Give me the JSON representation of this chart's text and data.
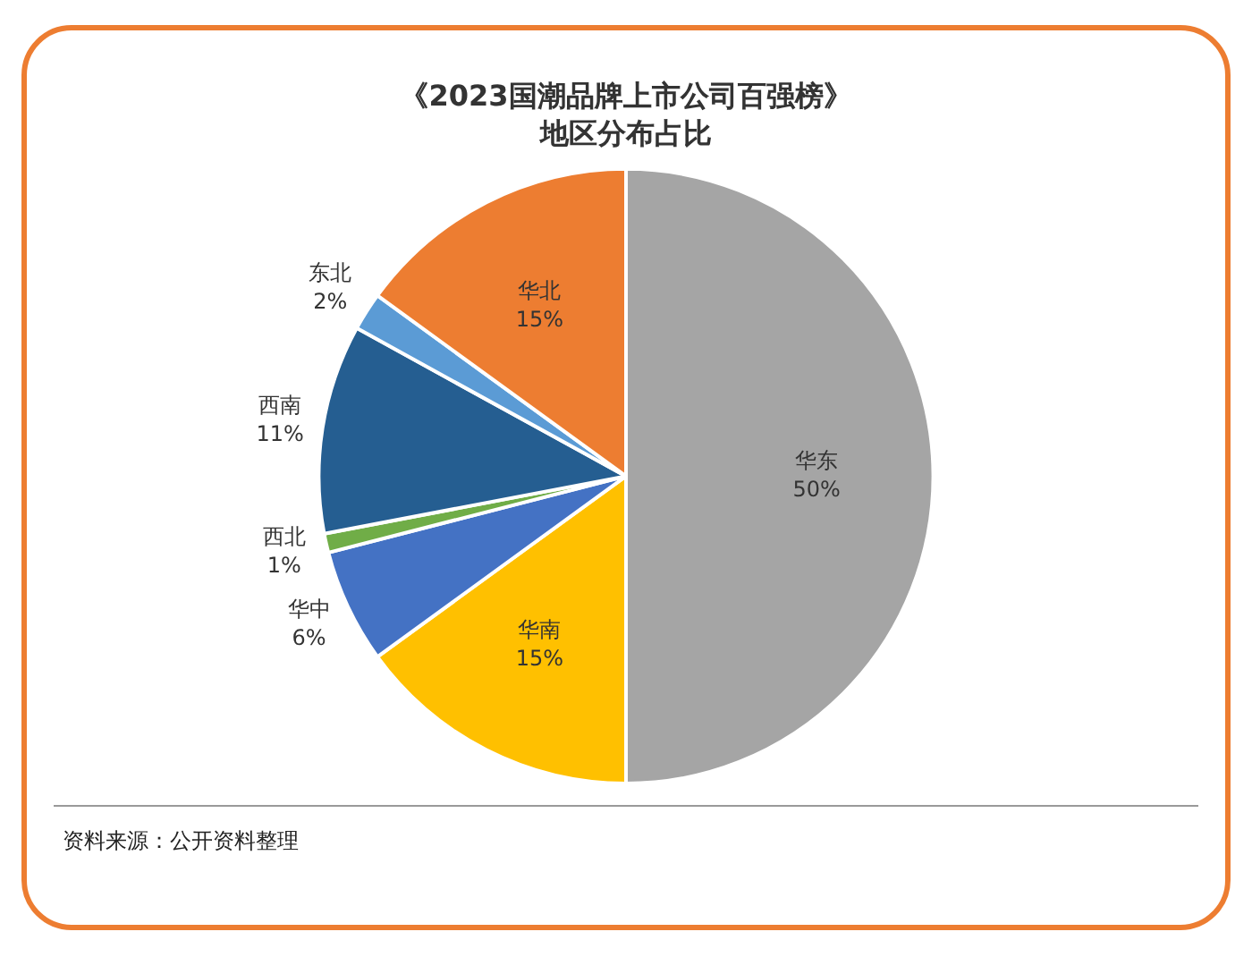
{
  "chart_data": {
    "type": "pie",
    "title": "《2023国潮品牌上市公司百强榜》",
    "subtitle": "地区分布占比",
    "categories": [
      "华东",
      "华南",
      "华中",
      "西北",
      "西南",
      "东北",
      "华北"
    ],
    "values": [
      50,
      15,
      6,
      1,
      11,
      2,
      15
    ],
    "value_labels": [
      "50%",
      "15%",
      "6%",
      "1%",
      "11%",
      "2%",
      "15%"
    ],
    "colors": [
      "#a5a5a5",
      "#ffc000",
      "#4472c4",
      "#70ad47",
      "#255e91",
      "#5b9bd5",
      "#ed7d31"
    ],
    "legend": false,
    "annotations": [
      "资料来源：公开资料整理"
    ]
  }
}
